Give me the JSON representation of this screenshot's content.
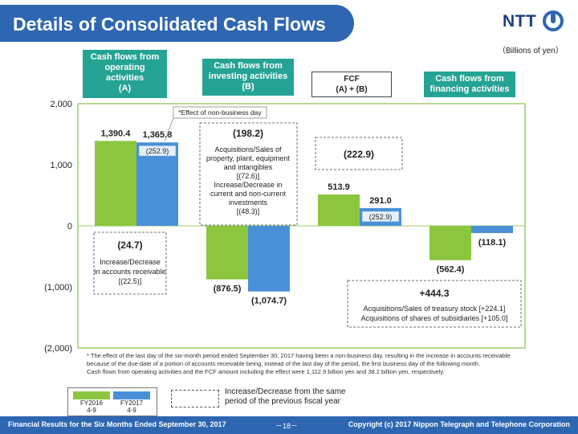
{
  "header": {
    "title": "Details of Consolidated Cash Flows",
    "logo": "NTT",
    "unit": "（Billions of yen）"
  },
  "categories": {
    "operating": {
      "line1": "Cash flows from",
      "line2": "operating",
      "line3": "activities",
      "line4": "(A)"
    },
    "investing": {
      "line1": "Cash flows from",
      "line2": "investing activities",
      "line3": "(B)"
    },
    "fcf": {
      "line1": "FCF",
      "line2": "(A) + (B)"
    },
    "financing": {
      "line1": "Cash flows from",
      "line2": "financing  activities"
    }
  },
  "chart_data": {
    "type": "bar",
    "ylim": [
      -2000,
      2000
    ],
    "yticks": [
      2000,
      1000,
      0,
      -1000,
      -2000
    ],
    "ytick_labels": [
      "2,000",
      "1,000",
      "0",
      "(1,000)",
      "(2,000)"
    ],
    "grid": false,
    "groups": [
      {
        "name": "operating",
        "fy2016": 1390.4,
        "fy2016_label": "1,390.4",
        "fy2017": 1365.8,
        "fy2017_label": "1,365.8",
        "nonbusiness_effect": 252.9,
        "effect_label": "(252.9)"
      },
      {
        "name": "investing",
        "fy2016": -876.5,
        "fy2016_label": "(876.5)",
        "fy2017": -1074.7,
        "fy2017_label": "(1,074.7)"
      },
      {
        "name": "fcf",
        "fy2016": 513.9,
        "fy2016_label": "513.9",
        "fy2017": 291.0,
        "fy2017_label": "291.0",
        "nonbusiness_effect": 252.9,
        "effect_label": "(252.9)"
      },
      {
        "name": "financing",
        "fy2016": -562.4,
        "fy2016_label": "(562.4)",
        "fy2017": -118.1,
        "fy2017_label": "(118.1)"
      }
    ],
    "series": [
      {
        "name": "FY2016 4-9",
        "color": "#8cc63f"
      },
      {
        "name": "FY2017 4-9",
        "color": "#4a90d9"
      }
    ],
    "effect_note": "*Effect of non-business day",
    "annotations": {
      "operating": {
        "value": "(24.7)",
        "line1": "Increase/Decrease",
        "line2": "in accounts receivable",
        "line3": "[(22.5)]"
      },
      "investing": {
        "value": "(198.2)",
        "line1": "Acquisitions/Sales of",
        "line2": "property,  plant, equipment",
        "line3": "and intangibles",
        "line4": "[(72.6)]",
        "line5": "Increase/Decrease  in",
        "line6": "current  and  non-current",
        "line7": "investments",
        "line8": "[(48.3)]"
      },
      "fcf": {
        "value": "(222.9)"
      },
      "financing": {
        "value": "+444.3",
        "line1": "Acquisitions/Sales of treasury stock [+224.1]",
        "line2": "Acquisitions of shares of subsidiaries [+105.0]"
      }
    }
  },
  "footnote": {
    "line1": "* The  effect of the last day of the six-month period ended September 30, 2017 having been a non-business day, resulting in the increase in accounts receivable",
    "line2": "because of the due date of a portion of accounts receivable being, instead of the last day of the period, the first business day of the following month.",
    "line3": "Cash flows from operating activities and the FCF  amount including the effect were 1,112.9 billion yen and 38.2 billion  yen, respectively."
  },
  "legend": {
    "fy2016_line1": "FY2016",
    "fy2016_line2": "4-9",
    "fy2017_line1": "FY2017",
    "fy2017_line2": "4-9",
    "dashed_line1": "Increase/Decrease  from the same",
    "dashed_line2": "period of the previous  fiscal year"
  },
  "footer": {
    "left": "Financial Results for the Six Months Ended  September 30, 2017",
    "page": "－18－",
    "right": "Copyright  (c) 2017  Nippon  Telegraph and Telephone  Corporation"
  }
}
